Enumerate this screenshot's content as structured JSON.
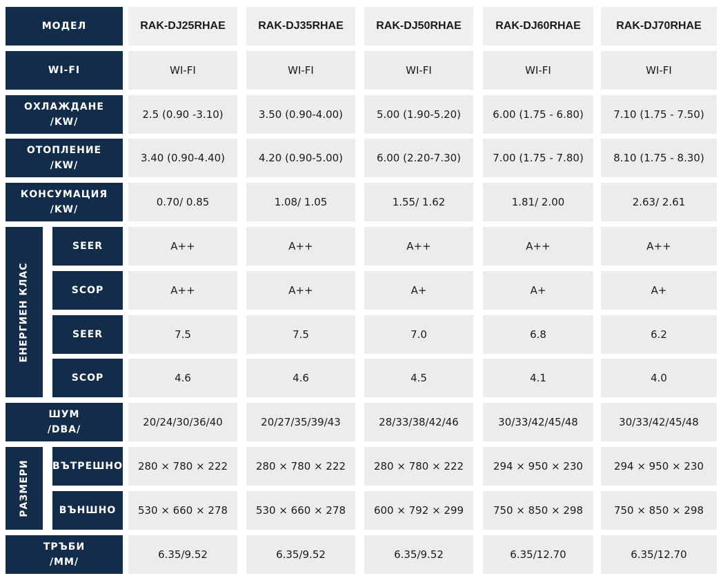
{
  "sections": [
    {
      "label": [
        "МОДЕЛ"
      ],
      "values": [
        "RAK-DJ25RHAE",
        "RAK-DJ35RHAE",
        "RAK-DJ50RHAE",
        "RAK-DJ60RHAE",
        "RAK-DJ70RHAE"
      ]
    },
    {
      "label": [
        "WI-FI"
      ],
      "values": [
        "WI-FI",
        "WI-FI",
        "WI-FI",
        "WI-FI",
        "WI-FI"
      ]
    },
    {
      "label": [
        "ОХЛАЖДАНЕ",
        "/KW/"
      ],
      "values": [
        "2.5 (0.90 -3.10)",
        "3.50 (0.90-4.00)",
        "5.00 (1.90-5.20)",
        "6.00 (1.75 - 6.80)",
        "7.10 (1.75 - 7.50)"
      ]
    },
    {
      "label": [
        "ОТОПЛЕНИЕ",
        "/KW/"
      ],
      "values": [
        "3.40 (0.90-4.40)",
        "4.20 (0.90-5.00)",
        "6.00 (2.20-7.30)",
        "7.00 (1.75 - 7.80)",
        "8.10 (1.75 - 8.30)"
      ]
    },
    {
      "label": [
        "КОНСУМАЦИЯ",
        "/KW/"
      ],
      "values": [
        "0.70/ 0.85",
        "1.08/ 1.05",
        "1.55/ 1.62",
        "1.81/ 2.00",
        "2.63/ 2.61"
      ]
    },
    {
      "group": "ЕНЕРГИЕН КЛАС",
      "rows": [
        {
          "label": [
            "SEER"
          ],
          "values": [
            "A++",
            "A++",
            "A++",
            "A++",
            "A++"
          ]
        },
        {
          "label": [
            "SCOP"
          ],
          "values": [
            "A++",
            "A++",
            "A+",
            "A+",
            "A+"
          ]
        },
        {
          "label": [
            "SEER"
          ],
          "values": [
            "7.5",
            "7.5",
            "7.0",
            "6.8",
            "6.2"
          ]
        },
        {
          "label": [
            "SCOP"
          ],
          "values": [
            "4.6",
            "4.6",
            "4.5",
            "4.1",
            "4.0"
          ]
        }
      ]
    },
    {
      "label": [
        "ШУМ",
        "/DBA/"
      ],
      "values": [
        "20/24/30/36/40",
        "20/27/35/39/43",
        "28/33/38/42/46",
        "30/33/42/45/48",
        "30/33/42/45/48"
      ]
    },
    {
      "group": "РАЗМЕРИ",
      "rows": [
        {
          "label": [
            "ВЪТРЕШНО"
          ],
          "values": [
            "280 × 780 × 222",
            "280 × 780 × 222",
            "280 × 780 × 222",
            "294 × 950 × 230",
            "294 × 950 × 230"
          ]
        },
        {
          "label": [
            "ВЪНШНО"
          ],
          "values": [
            "530 × 660 × 278",
            "530 × 660 × 278",
            "600 × 792 × 299",
            "750 × 850 × 298",
            "750 × 850 × 298"
          ]
        }
      ]
    },
    {
      "label": [
        "ТРЪБИ",
        "/MM/"
      ],
      "values": [
        "6.35/9.52",
        "6.35/9.52",
        "6.35/9.52",
        "6.35/12.70",
        "6.35/12.70"
      ]
    }
  ]
}
